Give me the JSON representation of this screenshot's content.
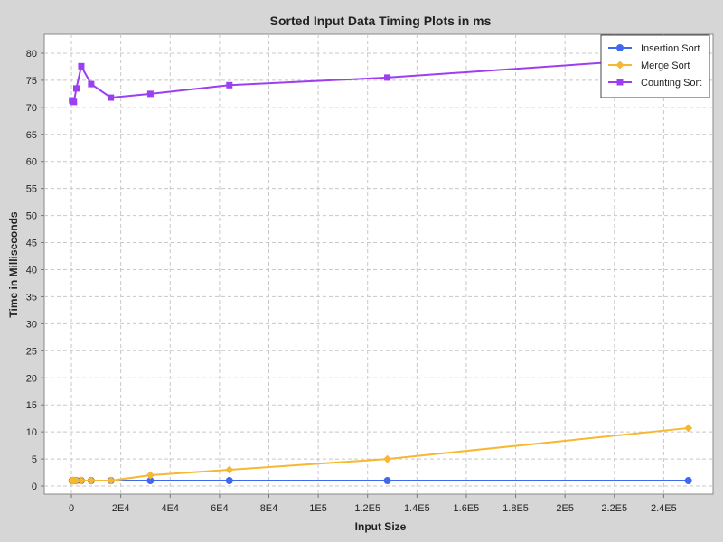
{
  "chart_data": {
    "type": "line",
    "title": "Sorted Input Data Timing Plots in ms",
    "xlabel": "Input Size",
    "ylabel": "Time in Milliseconds",
    "xlim": [
      -11000,
      260000
    ],
    "ylim": [
      -1.5,
      83.5
    ],
    "x_ticks": [
      {
        "value": 0,
        "label": "0"
      },
      {
        "value": 20000,
        "label": "2E4"
      },
      {
        "value": 40000,
        "label": "4E4"
      },
      {
        "value": 60000,
        "label": "6E4"
      },
      {
        "value": 80000,
        "label": "8E4"
      },
      {
        "value": 100000,
        "label": "1E5"
      },
      {
        "value": 120000,
        "label": "1.2E5"
      },
      {
        "value": 140000,
        "label": "1.4E5"
      },
      {
        "value": 160000,
        "label": "1.6E5"
      },
      {
        "value": 180000,
        "label": "1.8E5"
      },
      {
        "value": 200000,
        "label": "2E5"
      },
      {
        "value": 220000,
        "label": "2.2E5"
      },
      {
        "value": 240000,
        "label": "2.4E5"
      }
    ],
    "y_ticks": [
      {
        "value": 0,
        "label": "0"
      },
      {
        "value": 5,
        "label": "5"
      },
      {
        "value": 10,
        "label": "10"
      },
      {
        "value": 15,
        "label": "15"
      },
      {
        "value": 20,
        "label": "20"
      },
      {
        "value": 25,
        "label": "25"
      },
      {
        "value": 30,
        "label": "30"
      },
      {
        "value": 35,
        "label": "35"
      },
      {
        "value": 40,
        "label": "40"
      },
      {
        "value": 45,
        "label": "45"
      },
      {
        "value": 50,
        "label": "50"
      },
      {
        "value": 55,
        "label": "55"
      },
      {
        "value": 60,
        "label": "60"
      },
      {
        "value": 65,
        "label": "65"
      },
      {
        "value": 70,
        "label": "70"
      },
      {
        "value": 75,
        "label": "75"
      },
      {
        "value": 80,
        "label": "80"
      }
    ],
    "grid": true,
    "legend_position": "top-right",
    "series": [
      {
        "name": "Insertion Sort",
        "color": "#4169f0",
        "marker": "circle",
        "x": [
          250,
          500,
          1000,
          2000,
          4000,
          8000,
          16000,
          32000,
          64000,
          128000,
          250000
        ],
        "y": [
          1,
          1,
          1,
          1,
          1,
          1,
          1,
          1,
          1,
          1,
          1
        ]
      },
      {
        "name": "Merge Sort",
        "color": "#f7b731",
        "marker": "diamond",
        "x": [
          250,
          500,
          1000,
          2000,
          4000,
          8000,
          16000,
          32000,
          64000,
          128000,
          250000
        ],
        "y": [
          1,
          1,
          1,
          1,
          1,
          1,
          1,
          2,
          3,
          5,
          10.7
        ]
      },
      {
        "name": "Counting Sort",
        "color": "#9b3ff0",
        "marker": "square",
        "x": [
          250,
          500,
          1000,
          2000,
          4000,
          8000,
          16000,
          32000,
          64000,
          128000,
          250000
        ],
        "y": [
          71.3,
          71.1,
          71.0,
          73.5,
          77.6,
          74.3,
          71.8,
          72.5,
          74.1,
          75.5,
          79.3
        ]
      }
    ]
  }
}
